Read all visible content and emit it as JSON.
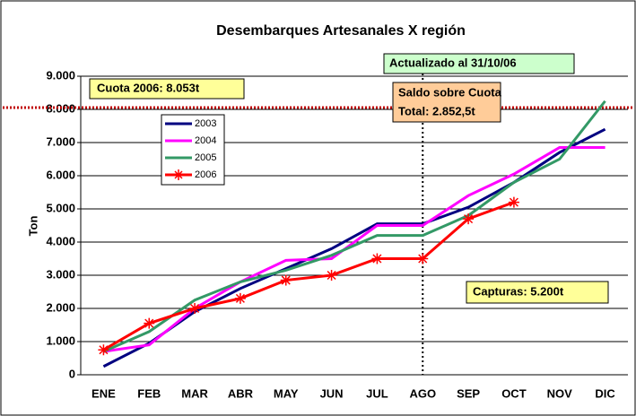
{
  "chart_data": {
    "type": "line",
    "title": "Desembarques Artesanales X región",
    "y_label": "Ton",
    "categories": [
      "ENE",
      "FEB",
      "MAR",
      "ABR",
      "MAY",
      "JUN",
      "JUL",
      "AGO",
      "SEP",
      "OCT",
      "NOV",
      "DIC"
    ],
    "series": [
      {
        "name": "2003",
        "color": "#000080",
        "values": [
          250,
          950,
          1900,
          2600,
          3200,
          3800,
          4550,
          4550,
          5050,
          5800,
          6700,
          7400
        ]
      },
      {
        "name": "2004",
        "color": "#ff00ff",
        "values": [
          700,
          900,
          2000,
          2800,
          3450,
          3500,
          4500,
          4500,
          5400,
          6050,
          6850,
          6850
        ]
      },
      {
        "name": "2005",
        "color": "#339966",
        "values": [
          700,
          1300,
          2250,
          2800,
          3150,
          3600,
          4200,
          4200,
          4800,
          5800,
          6500,
          8250
        ]
      },
      {
        "name": "2006",
        "color": "#ff0000",
        "values": [
          750,
          1550,
          2000,
          2300,
          2850,
          3000,
          3500,
          3500,
          4700,
          5200,
          null,
          null
        ]
      }
    ],
    "ylim": [
      0,
      9000
    ],
    "yticks": [
      0,
      {
        "value": 1000,
        "label": "1.000"
      },
      {
        "value": 2000,
        "label": "2.000"
      },
      {
        "value": 3000,
        "label": "3.000"
      },
      {
        "value": 4000,
        "label": "4.000"
      },
      {
        "value": 5000,
        "label": "5.000"
      },
      {
        "value": 6000,
        "label": "6.000"
      },
      {
        "value": 7000,
        "label": "7.000"
      },
      {
        "value": 8000,
        "label": "8.000"
      },
      {
        "value": 9000,
        "label": "9.000"
      }
    ],
    "grid": true,
    "quota_line": 8053,
    "annotations": [
      "Cuota 2006: 8.053t",
      "Actualizado al 31/10/06",
      "Saldo sobre Cuota",
      "Total: 2.852,5t",
      "Capturas: 5.200t"
    ]
  }
}
